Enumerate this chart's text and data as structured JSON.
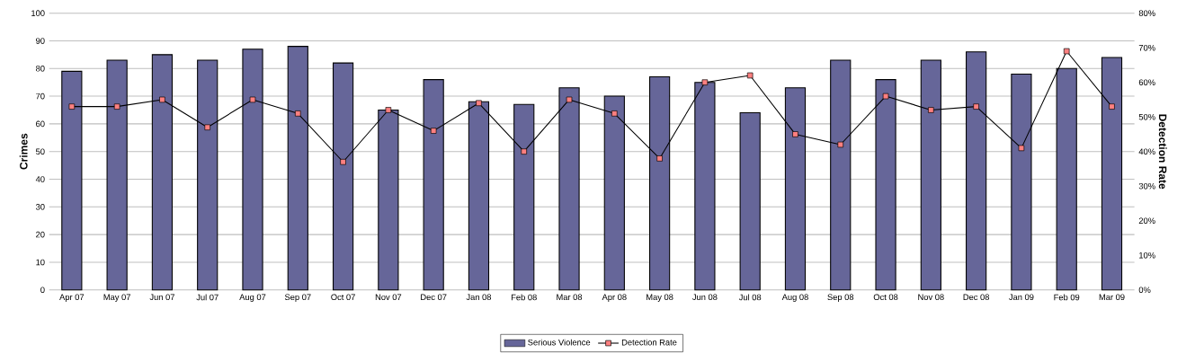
{
  "chart_data": {
    "type": "bar",
    "categories": [
      "Apr 07",
      "May 07",
      "Jun 07",
      "Jul 07",
      "Aug 07",
      "Sep 07",
      "Oct 07",
      "Nov 07",
      "Dec 07",
      "Jan 08",
      "Feb 08",
      "Mar 08",
      "Apr 08",
      "May 08",
      "Jun 08",
      "Jul 08",
      "Aug 08",
      "Sep 08",
      "Oct 08",
      "Nov 08",
      "Dec 08",
      "Jan 09",
      "Feb 09",
      "Mar 09"
    ],
    "series": [
      {
        "name": "Serious Violence",
        "color": "#666699",
        "values": [
          79,
          83,
          85,
          83,
          87,
          88,
          82,
          65,
          76,
          68,
          67,
          73,
          70,
          77,
          75,
          64,
          73,
          83,
          76,
          83,
          86,
          78,
          80,
          84
        ]
      },
      {
        "name": "Detection Rate",
        "type": "line",
        "axis": "y2",
        "color": "#ff8080",
        "marker": "square",
        "values": [
          53,
          53,
          55,
          47,
          55,
          51,
          37,
          52,
          46,
          54,
          40,
          55,
          51,
          38,
          60,
          62,
          45,
          42,
          56,
          52,
          53,
          41,
          69,
          53
        ]
      }
    ],
    "ylabel": "Crimes",
    "y2label": "Detection Rate",
    "ylim": [
      0,
      100
    ],
    "yticks": [
      0,
      10,
      20,
      30,
      40,
      50,
      60,
      70,
      80,
      90,
      100
    ],
    "y2lim": [
      0,
      80
    ],
    "y2ticks": [
      {
        "value": 0,
        "label": "0%"
      },
      {
        "value": 10,
        "label": "10%"
      },
      {
        "value": 20,
        "label": "20%"
      },
      {
        "value": 30,
        "label": "30%"
      },
      {
        "value": 40,
        "label": "40%"
      },
      {
        "value": 50,
        "label": "50%"
      },
      {
        "value": 60,
        "label": "60%"
      },
      {
        "value": 70,
        "label": "70%"
      },
      {
        "value": 80,
        "label": "80%"
      }
    ],
    "grid": "y",
    "legend": "bottom"
  }
}
